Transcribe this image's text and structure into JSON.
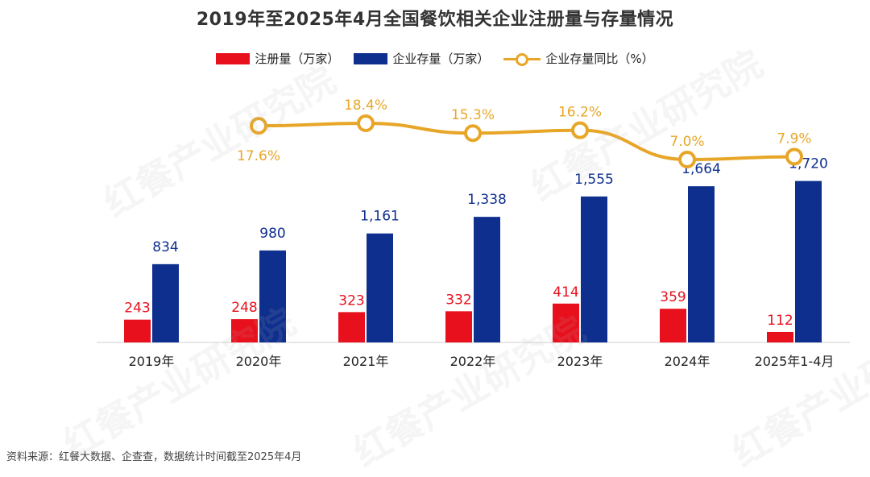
{
  "title": "2019年至2025年4月全国餐饮相关企业注册量与存量情况",
  "legend": {
    "registrations": "注册量（万家）",
    "stock": "企业存量（万家）",
    "yoy": "企业存量同比（%）"
  },
  "source": "资料来源：红餐大数据、企查查，数据统计时间截至2025年4月",
  "watermark": "红餐产业研究院",
  "colors": {
    "registrations": "#e8101d",
    "stock": "#0e2f8e",
    "yoy": "#e8a628"
  },
  "chart_data": {
    "type": "bar",
    "title": "2019年至2025年4月全国餐饮相关企业注册量与存量情况",
    "categories": [
      "2019年",
      "2020年",
      "2021年",
      "2022年",
      "2023年",
      "2024年",
      "2025年1-4月"
    ],
    "series": [
      {
        "name": "注册量（万家）",
        "type": "bar",
        "values": [
          243,
          248,
          323,
          332,
          414,
          359,
          112
        ],
        "labels": [
          "243",
          "248",
          "323",
          "332",
          "414",
          "359",
          "112"
        ]
      },
      {
        "name": "企业存量（万家）",
        "type": "bar",
        "values": [
          834,
          980,
          1161,
          1338,
          1555,
          1664,
          1720
        ],
        "labels": [
          "834",
          "980",
          "1,161",
          "1,338",
          "1,555",
          "1,664",
          "1,720"
        ]
      },
      {
        "name": "企业存量同比（%）",
        "type": "line",
        "values": [
          null,
          17.6,
          18.4,
          15.3,
          16.2,
          7.0,
          7.9
        ],
        "labels": [
          "",
          "17.6%",
          "18.4%",
          "15.3%",
          "16.2%",
          "7.0%",
          "7.9%"
        ]
      }
    ],
    "grid": false,
    "legend_position": "top-center"
  }
}
